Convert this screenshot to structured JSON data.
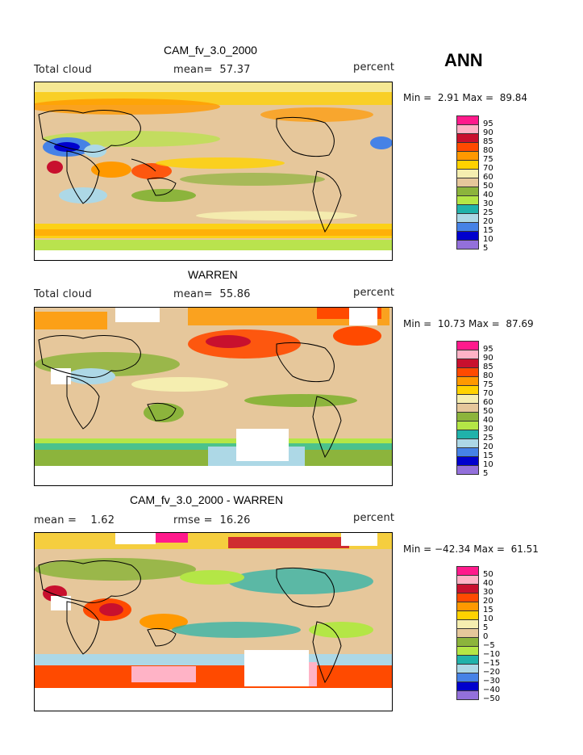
{
  "season": "ANN",
  "panels": [
    {
      "title": "CAM_fv_3.0_2000",
      "left_label": "Total cloud",
      "center_label": "mean=  57.37",
      "right_label": "percent",
      "min_label": "Min =",
      "min_value": "2.91",
      "max_label": "Max =",
      "max_value": "89.84",
      "colorbar": [
        "95",
        "90",
        "85",
        "80",
        "75",
        "70",
        "60",
        "50",
        "40",
        "30",
        "25",
        "20",
        "15",
        "10",
        "5"
      ]
    },
    {
      "title": "WARREN",
      "left_label": "Total cloud",
      "center_label": "mean=  55.86",
      "right_label": "percent",
      "min_label": "Min =",
      "min_value": "10.73",
      "max_label": "Max =",
      "max_value": "87.69",
      "colorbar": [
        "95",
        "90",
        "85",
        "80",
        "75",
        "70",
        "60",
        "50",
        "40",
        "30",
        "25",
        "20",
        "15",
        "10",
        "5"
      ]
    },
    {
      "title": "CAM_fv_3.0_2000 - WARREN",
      "left_label": "mean =    1.62",
      "center_label": "rmse =  16.26",
      "right_label": "percent",
      "min_label": "Min =",
      "min_value": "−42.34",
      "max_label": "Max =",
      "max_value": "61.51",
      "colorbar": [
        "50",
        "40",
        "30",
        "20",
        "15",
        "10",
        "5",
        "0",
        "−5",
        "−10",
        "−15",
        "−20",
        "−30",
        "−40",
        "−50"
      ]
    }
  ],
  "colors": [
    "#ff1a8c",
    "#ffb3c6",
    "#c8102e",
    "#ff4a00",
    "#ff9900",
    "#ffd200",
    "#f5eeb0",
    "#e6c79b",
    "#8cb43c",
    "#b4e646",
    "#20b2aa",
    "#add8e6",
    "#4682e6",
    "#0000cd",
    "#9370db"
  ]
}
